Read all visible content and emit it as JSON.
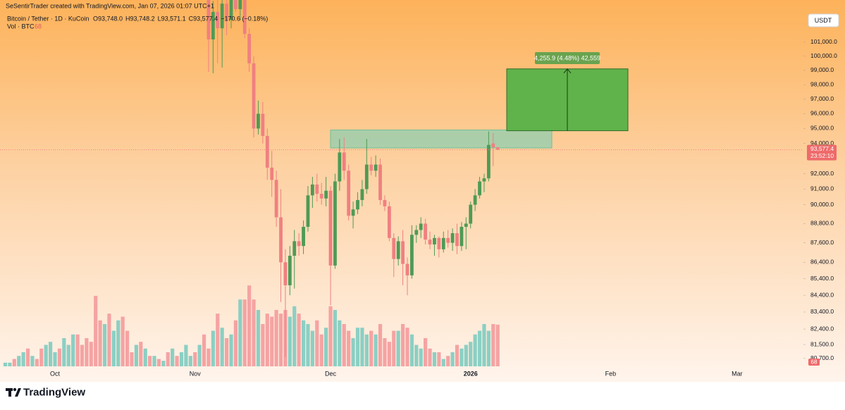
{
  "chart_data": {
    "type": "candlestick",
    "author": "SeSentirTrader created with TradingView.com, Jan 07, 2026 01:07 UTC+1",
    "symbol": "Bitcoin / Tether · 1D · KuCoin",
    "ohlc_labels": [
      "O93,748.0",
      "H93,748.2",
      "L93,571.1",
      "C93,577.4",
      "−170.6 (−0.18%)"
    ],
    "volume_label": "Vol · BTC",
    "currency": "USDT",
    "brand": "TradingView",
    "log_scale": true,
    "grid": false,
    "up_color": "#4f9a55",
    "down_color": "#f08080",
    "ylim": [
      80250,
      104070
    ],
    "yticks": [
      {
        "value": 80700,
        "label": "80,700.0"
      },
      {
        "value": 81500,
        "label": "81,500.0"
      },
      {
        "value": 82400,
        "label": "82,400.0"
      },
      {
        "value": 83400,
        "label": "83,400.0"
      },
      {
        "value": 84400,
        "label": "84,400.0"
      },
      {
        "value": 85400,
        "label": "85,400.0"
      },
      {
        "value": 86400,
        "label": "86,400.0"
      },
      {
        "value": 87600,
        "label": "87,600.0"
      },
      {
        "value": 88800,
        "label": "88,800.0"
      },
      {
        "value": 90000,
        "label": "90,000.0"
      },
      {
        "value": 91000,
        "label": "91,000.0"
      },
      {
        "value": 92000,
        "label": "92,000.0"
      },
      {
        "value": 94000,
        "label": "94,000.0"
      },
      {
        "value": 95000,
        "label": "95,000.0"
      },
      {
        "value": 96000,
        "label": "96,000.0"
      },
      {
        "value": 97000,
        "label": "97,000.0"
      },
      {
        "value": 98000,
        "label": "98,000.0"
      },
      {
        "value": 99000,
        "label": "99,000.0"
      },
      {
        "value": 100000,
        "label": "100,000.0"
      },
      {
        "value": 101000,
        "label": "101,000.0"
      }
    ],
    "categories": [
      null,
      null,
      null,
      null,
      null,
      null,
      null,
      null,
      null,
      null,
      null,
      "Oct",
      null,
      null,
      null,
      null,
      null,
      null,
      null,
      null,
      null,
      null,
      null,
      null,
      null,
      null,
      null,
      null,
      null,
      null,
      null,
      null,
      null,
      null,
      null,
      null,
      null,
      null,
      null,
      null,
      null,
      null,
      "Nov",
      null,
      null,
      null,
      null,
      null,
      null,
      null,
      null,
      null,
      null,
      null,
      null,
      null,
      null,
      null,
      null,
      null,
      null,
      null,
      null,
      null,
      null,
      null,
      null,
      null,
      null,
      null,
      null,
      null,
      "Dec",
      null,
      null,
      null,
      null,
      null,
      null,
      null,
      null,
      null,
      null,
      null,
      null,
      null,
      null,
      null,
      null,
      null,
      null,
      null,
      null,
      null,
      null,
      null,
      null,
      null,
      null,
      null,
      null,
      null,
      null,
      "2026",
      null,
      null,
      null,
      null,
      null,
      null,
      null,
      null,
      null,
      null,
      null,
      null,
      null,
      null,
      null,
      null,
      null,
      null,
      null,
      null,
      null,
      null,
      null,
      null,
      null,
      null,
      null,
      null,
      null,
      null,
      "Feb",
      null,
      null,
      null,
      null,
      null,
      null,
      null,
      null,
      null,
      null,
      null,
      null,
      null,
      null,
      null,
      null,
      null,
      null,
      null,
      null,
      null,
      null,
      null,
      null,
      null,
      null,
      null,
      "Mar"
    ],
    "candles": [
      null,
      null,
      null,
      null,
      null,
      null,
      null,
      null,
      null,
      null,
      null,
      null,
      null,
      null,
      null,
      null,
      null,
      null,
      null,
      null,
      null,
      null,
      null,
      null,
      null,
      null,
      null,
      null,
      null,
      null,
      null,
      null,
      null,
      null,
      null,
      null,
      null,
      null,
      null,
      null,
      null,
      null,
      null,
      null,
      null,
      [
        104500,
        106000,
        98900,
        101200
      ],
      [
        101200,
        104000,
        98800,
        103200
      ],
      [
        103200,
        104800,
        99500,
        102000
      ],
      [
        102000,
        105000,
        99200,
        103800
      ],
      [
        103800,
        105500,
        101500,
        102600
      ],
      [
        102600,
        106000,
        102000,
        104600
      ],
      [
        104600,
        106500,
        103200,
        103400
      ],
      [
        103400,
        105000,
        102600,
        104400
      ],
      [
        104400,
        105200,
        101300,
        101600
      ],
      [
        101600,
        102000,
        98900,
        99500
      ],
      [
        99500,
        100000,
        94400,
        95000
      ],
      [
        95000,
        96900,
        94600,
        96000
      ],
      [
        96000,
        96800,
        94000,
        94500
      ],
      [
        94500,
        95000,
        91600,
        92400
      ],
      [
        92400,
        93500,
        90500,
        91600
      ],
      [
        91600,
        92200,
        88600,
        89200
      ],
      [
        89200,
        91000,
        84000,
        86400
      ],
      [
        86400,
        87200,
        80800,
        85000
      ],
      [
        85000,
        87400,
        84400,
        86800
      ],
      [
        86800,
        88400,
        84800,
        87700
      ],
      [
        87700,
        88200,
        86800,
        87400
      ],
      [
        87400,
        89000,
        86900,
        88600
      ],
      [
        88600,
        91200,
        88300,
        90600
      ],
      [
        90600,
        91800,
        89800,
        91300
      ],
      [
        91300,
        92000,
        90200,
        90700
      ],
      [
        90700,
        91400,
        90000,
        90400
      ],
      [
        90400,
        91800,
        89900,
        90900
      ],
      [
        90900,
        91200,
        83800,
        86200
      ],
      [
        86200,
        92000,
        86000,
        91500
      ],
      [
        91500,
        94300,
        90900,
        93400
      ],
      [
        93400,
        94400,
        91600,
        92200
      ],
      [
        92200,
        92600,
        89000,
        89300
      ],
      [
        89300,
        90200,
        88500,
        89700
      ],
      [
        89700,
        90800,
        89400,
        90300
      ],
      [
        90300,
        91600,
        89900,
        91000
      ],
      [
        91000,
        94300,
        90700,
        92600
      ],
      [
        92600,
        93100,
        91900,
        92200
      ],
      [
        92200,
        93200,
        91800,
        92600
      ],
      [
        92600,
        93000,
        90000,
        90300
      ],
      [
        90300,
        90600,
        89600,
        89900
      ],
      [
        89900,
        90200,
        87700,
        87900
      ],
      [
        87900,
        88200,
        85500,
        86600
      ],
      [
        86600,
        88000,
        86200,
        87700
      ],
      [
        87700,
        88400,
        85000,
        86300
      ],
      [
        86300,
        86700,
        84400,
        85600
      ],
      [
        85600,
        88700,
        85400,
        88100
      ],
      [
        88100,
        88700,
        87600,
        88400
      ],
      [
        88400,
        89200,
        87900,
        88800
      ],
      [
        88800,
        89100,
        87500,
        87800
      ],
      [
        87800,
        88300,
        87200,
        87500
      ],
      [
        87500,
        88100,
        86800,
        87900
      ],
      [
        87900,
        88000,
        86700,
        87200
      ],
      [
        87200,
        88300,
        87000,
        87900
      ],
      [
        87900,
        88400,
        87300,
        87600
      ],
      [
        87600,
        88500,
        87100,
        88200
      ],
      [
        88200,
        88800,
        86900,
        87400
      ],
      [
        87400,
        88900,
        87100,
        88600
      ],
      [
        88600,
        89200,
        87200,
        88800
      ],
      [
        88800,
        90200,
        88500,
        90000
      ],
      [
        90000,
        91000,
        89600,
        90600
      ],
      [
        90600,
        91800,
        90400,
        91500
      ],
      [
        91500,
        92000,
        90800,
        91700
      ],
      [
        91700,
        94800,
        91500,
        93900
      ],
      [
        94000,
        94700,
        92500,
        93748
      ],
      [
        93748.0,
        93748.2,
        93571.1,
        93577.4
      ],
      null,
      null,
      null,
      null,
      null,
      null,
      null,
      null,
      null,
      null,
      null,
      null,
      null,
      null,
      null,
      null,
      null,
      null,
      null,
      null,
      null,
      null,
      null,
      null,
      null,
      null,
      null,
      null,
      null,
      null,
      null,
      null,
      null,
      null,
      null,
      null,
      null,
      null,
      null,
      null,
      null,
      null,
      null,
      null,
      null,
      null,
      null,
      null,
      null,
      null,
      null,
      null,
      null
    ],
    "volume": [
      6,
      6,
      12,
      17,
      23,
      29,
      17,
      12,
      29,
      35,
      40,
      23,
      29,
      46,
      35,
      52,
      52,
      35,
      46,
      40,
      115,
      75,
      69,
      86,
      58,
      75,
      81,
      58,
      23,
      35,
      40,
      29,
      17,
      17,
      12,
      9,
      23,
      29,
      17,
      23,
      35,
      17,
      23,
      35,
      52,
      29,
      58,
      86,
      63,
      46,
      52,
      75,
      109,
      109,
      132,
      109,
      92,
      69,
      86,
      81,
      92,
      86,
      92,
      81,
      98,
      86,
      75,
      69,
      58,
      75,
      52,
      63,
      98,
      92,
      75,
      69,
      58,
      46,
      63,
      63,
      52,
      58,
      52,
      69,
      46,
      40,
      58,
      58,
      69,
      63,
      52,
      35,
      29,
      46,
      29,
      23,
      23,
      12,
      17,
      23,
      35,
      29,
      35,
      40,
      52,
      58,
      69,
      58,
      69,
      68,
      null,
      null,
      null,
      null,
      null,
      null,
      null,
      null,
      null,
      null,
      null,
      null,
      null,
      null,
      null,
      null,
      null,
      null,
      null,
      null,
      null,
      null,
      null,
      null,
      null,
      null,
      null,
      null,
      null,
      null,
      null,
      null,
      null,
      null,
      null,
      null,
      null,
      null,
      null,
      null,
      null,
      null,
      null,
      null,
      null,
      null,
      null,
      null,
      null,
      null,
      null,
      null,
      null
    ],
    "volume_colors": [
      "#8ccfc3",
      "#8ccfc3",
      "#f5a3a3",
      "#8ccfc3",
      "#8ccfc3",
      "#f5a3a3",
      "#8ccfc3",
      "#f5a3a3",
      "#f5a3a3",
      "#8ccfc3",
      "#8ccfc3",
      "#8ccfc3",
      "#f5a3a3",
      "#8ccfc3",
      "#8ccfc3",
      "#8ccfc3",
      "#f5a3a3",
      "#f5a3a3",
      "#f5a3a3",
      "#f5a3a3",
      "#f5a3a3",
      "#f5a3a3",
      "#8ccfc3",
      "#f5a3a3",
      "#8ccfc3",
      "#8ccfc3",
      "#f5a3a3",
      "#f5a3a3",
      "#f5a3a3",
      "#8ccfc3",
      "#f5a3a3",
      "#8ccfc3",
      "#f5a3a3",
      "#8ccfc3",
      "#f5a3a3",
      "#8ccfc3",
      "#f5a3a3",
      "#8ccfc3",
      "#f5a3a3",
      "#8ccfc3",
      "#8ccfc3",
      "#8ccfc3",
      "#f5a3a3",
      "#8ccfc3",
      "#f5a3a3",
      "#f5a3a3",
      "#8ccfc3",
      "#f5a3a3",
      "#8ccfc3",
      "#f5a3a3",
      "#8ccfc3",
      "#f5a3a3",
      "#8ccfc3",
      "#f5a3a3",
      "#f5a3a3",
      "#f5a3a3",
      "#8ccfc3",
      "#f5a3a3",
      "#f5a3a3",
      "#f5a3a3",
      "#f5a3a3",
      "#f5a3a3",
      "#f5a3a3",
      "#8ccfc3",
      "#8ccfc3",
      "#f5a3a3",
      "#8ccfc3",
      "#8ccfc3",
      "#8ccfc3",
      "#f5a3a3",
      "#f5a3a3",
      "#8ccfc3",
      "#f5a3a3",
      "#8ccfc3",
      "#8ccfc3",
      "#f5a3a3",
      "#f5a3a3",
      "#8ccfc3",
      "#8ccfc3",
      "#8ccfc3",
      "#8ccfc3",
      "#f5a3a3",
      "#8ccfc3",
      "#f5a3a3",
      "#f5a3a3",
      "#f5a3a3",
      "#f5a3a3",
      "#8ccfc3",
      "#f5a3a3",
      "#f5a3a3",
      "#8ccfc3",
      "#8ccfc3",
      "#8ccfc3",
      "#f5a3a3",
      "#f5a3a3",
      "#8ccfc3",
      "#f5a3a3",
      "#8ccfc3",
      "#f5a3a3",
      "#8ccfc3",
      "#f5a3a3",
      "#8ccfc3",
      "#8ccfc3",
      "#8ccfc3",
      "#8ccfc3",
      "#8ccfc3",
      "#8ccfc3",
      "#8ccfc3",
      "#f5a3a3",
      "#f5a3a3",
      null,
      null,
      null,
      null,
      null,
      null,
      null,
      null,
      null,
      null,
      null,
      null,
      null,
      null,
      null,
      null,
      null,
      null,
      null,
      null,
      null,
      null,
      null,
      null,
      null,
      null,
      null,
      null,
      null,
      null,
      null,
      null,
      null,
      null,
      null,
      null,
      null,
      null,
      null,
      null,
      null,
      null,
      null,
      null,
      null,
      null,
      null,
      null,
      null,
      null,
      null,
      null,
      null
    ],
    "zone": {
      "top": 94900,
      "bottom": 93700,
      "color": "#8fcfb0"
    },
    "measure": {
      "label": "4,255.9 (4.48%) 42,559",
      "bottom": 94850,
      "top": 99105.9,
      "color": "#5fb34a"
    },
    "price_label": "93,577.4",
    "countdown": "23:52:10"
  }
}
